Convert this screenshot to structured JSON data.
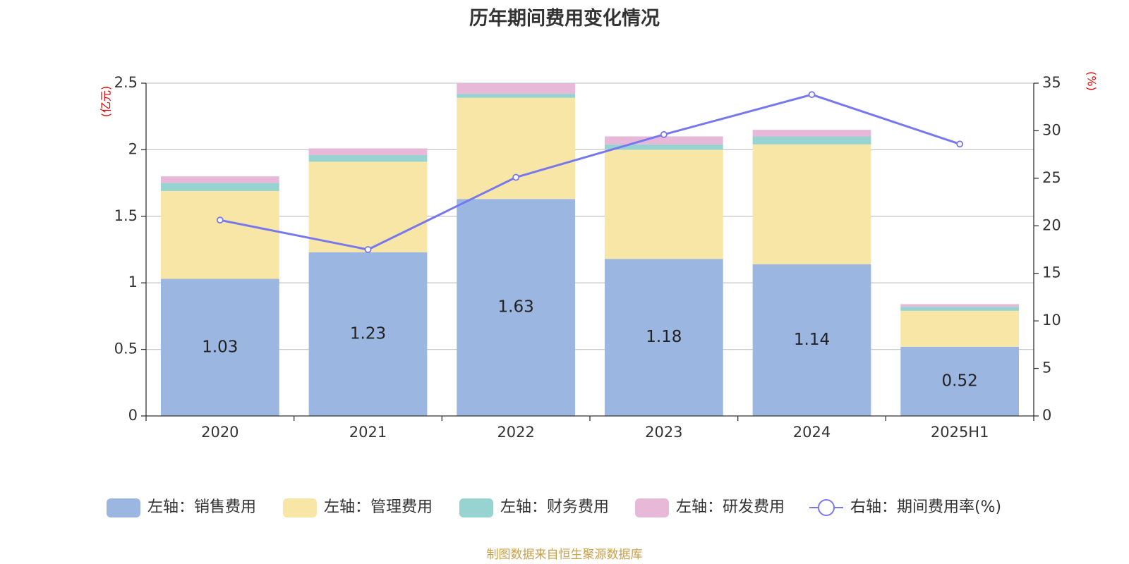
{
  "colors": {
    "sales": "#9ab6e1",
    "admin": "#f7e6a6",
    "finance": "#96d3d1",
    "rnd": "#e8b8d9",
    "rate": "#7878ee",
    "unit": "#e00000",
    "grid": "#c8c8c8",
    "source": "#c8a04a"
  },
  "chart_data": {
    "type": "bar",
    "title": "历年期间费用变化情况",
    "categories": [
      "2020",
      "2021",
      "2022",
      "2023",
      "2024",
      "2025H1"
    ],
    "series": [
      {
        "name": "左轴：销售费用",
        "axis": "left",
        "values": [
          1.03,
          1.23,
          1.63,
          1.18,
          1.14,
          0.52
        ],
        "labels": [
          "1.03",
          "1.23",
          "1.63",
          "1.18",
          "1.14",
          "0.52"
        ]
      },
      {
        "name": "左轴：管理费用",
        "axis": "left",
        "values": [
          0.66,
          0.68,
          0.76,
          0.82,
          0.9,
          0.27
        ]
      },
      {
        "name": "左轴：财务费用",
        "axis": "left",
        "values": [
          0.06,
          0.05,
          0.03,
          0.04,
          0.06,
          0.03
        ]
      },
      {
        "name": "左轴：研发费用",
        "axis": "left",
        "values": [
          0.05,
          0.05,
          0.08,
          0.06,
          0.05,
          0.02
        ]
      },
      {
        "name": "右轴：期间费用率(%)",
        "axis": "right",
        "type": "line",
        "values": [
          20.6,
          17.5,
          25.1,
          29.6,
          33.8,
          28.6
        ]
      }
    ],
    "y_left": {
      "unit": "(亿元)",
      "ylim": [
        0,
        2.5
      ],
      "ticks": [
        "0",
        "0.5",
        "1",
        "1.5",
        "2",
        "2.5"
      ]
    },
    "y_right": {
      "unit": "(%)",
      "ylim": [
        0,
        35
      ],
      "ticks": [
        "0",
        "5",
        "10",
        "15",
        "20",
        "25",
        "30",
        "35"
      ]
    },
    "grid": true,
    "legend_position": "bottom"
  },
  "source_note": "制图数据来自恒生聚源数据库"
}
